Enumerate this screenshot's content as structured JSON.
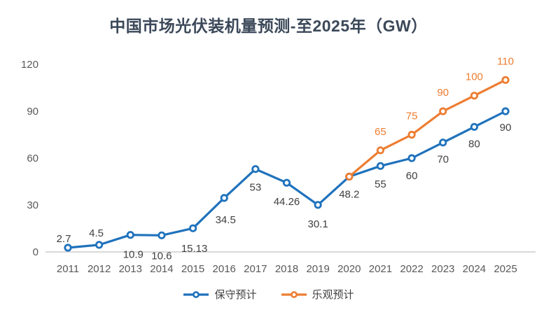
{
  "title": "中国市场光伏装机量预测-至2025年（GW）",
  "colors": {
    "title": "#3B4859",
    "axis_label": "#595959",
    "axis_line": "#D9D9D9",
    "background": "#FFFFFF",
    "conservative_blue": "#1F72BC",
    "optimistic_orange": "#ED7D31",
    "data_label_gray": "#404040"
  },
  "chart_data": {
    "type": "line",
    "title": "中国市场光伏装机量预测-至2025年（GW）",
    "categories": [
      "2011",
      "2012",
      "2013",
      "2014",
      "2015",
      "2016",
      "2017",
      "2018",
      "2019",
      "2020",
      "2021",
      "2022",
      "2023",
      "2024",
      "2025"
    ],
    "xlabel": "",
    "ylabel": "",
    "ylim": [
      0,
      120
    ],
    "y_ticks": [
      0,
      30,
      60,
      90,
      120
    ],
    "grid": false,
    "legend_position": "bottom",
    "series": [
      {
        "name": "保守预计",
        "color": "#1F72BC",
        "label_color": "#404040",
        "values": [
          2.7,
          4.5,
          10.9,
          10.6,
          15.13,
          34.5,
          53,
          44.26,
          30.1,
          48.2,
          55,
          60,
          70,
          80,
          90
        ],
        "labels": [
          "2.7",
          "4.5",
          "10.9",
          "10.6",
          "15.13",
          "34.5",
          "53",
          "44.26",
          "30.1",
          "48.2",
          "55",
          "60",
          "70",
          "80",
          "90"
        ]
      },
      {
        "name": "乐观预计",
        "color": "#ED7D31",
        "label_color": "#ED7D31",
        "values": [
          null,
          null,
          null,
          null,
          null,
          null,
          null,
          null,
          null,
          48.2,
          65,
          75,
          90,
          100,
          110
        ],
        "labels": [
          null,
          null,
          null,
          null,
          null,
          null,
          null,
          null,
          null,
          null,
          "65",
          "75",
          "90",
          "100",
          "110"
        ]
      }
    ]
  },
  "legend": {
    "items": [
      {
        "label": "保守预计",
        "color": "#1F72BC"
      },
      {
        "label": "乐观预计",
        "color": "#ED7D31"
      }
    ]
  }
}
